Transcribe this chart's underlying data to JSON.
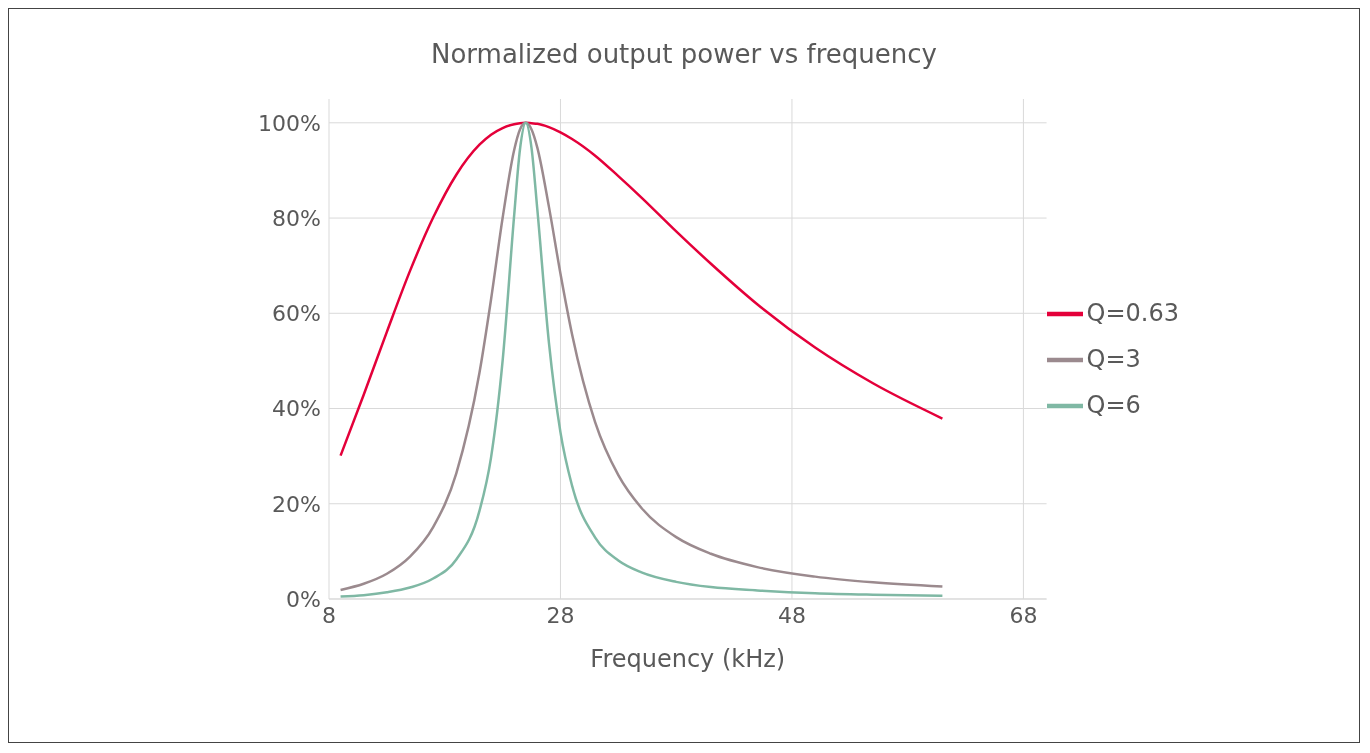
{
  "chart_data": {
    "type": "line",
    "title": "Normalized output power vs frequency",
    "xlabel": "Frequency (kHz)",
    "x": [
      9,
      11,
      13,
      15,
      17,
      19,
      21,
      22,
      23,
      24,
      24.5,
      25,
      25.5,
      26,
      27,
      28,
      29,
      31,
      33,
      35,
      38,
      41,
      45,
      50,
      55,
      61
    ],
    "series": [
      {
        "name": "Q=0.63",
        "color": "#e4003a",
        "values": [
          30.1,
          42.9,
          56.1,
          68.9,
          80.1,
          89.1,
          95.4,
          97.5,
          98.9,
          99.7,
          99.9,
          100,
          99.9,
          99.8,
          99.1,
          98.0,
          96.6,
          93.1,
          88.8,
          84.3,
          77.2,
          70.4,
          61.9,
          52.8,
          45.3,
          37.9
        ]
      },
      {
        "name": "Q=3",
        "color": "#9b8a8e",
        "values": [
          1.9,
          3.2,
          5.3,
          8.9,
          15.1,
          26.4,
          47.5,
          62.9,
          80.0,
          94.3,
          98.6,
          100,
          98.6,
          94.8,
          82.4,
          68.3,
          55.6,
          37.1,
          26.0,
          19.1,
          13.0,
          9.5,
          6.7,
          4.7,
          3.5,
          2.6
        ]
      },
      {
        "name": "Q=6",
        "color": "#7fb8a4",
        "values": [
          0.5,
          0.8,
          1.4,
          2.4,
          4.3,
          8.3,
          18.5,
          29.7,
          50.0,
          80.6,
          94.4,
          100,
          94.7,
          81.8,
          53.9,
          35.0,
          23.8,
          12.9,
          8.1,
          5.6,
          3.6,
          2.5,
          1.8,
          1.2,
          0.9,
          0.7
        ]
      }
    ],
    "xlim": [
      8,
      70
    ],
    "xticks": [
      8,
      28,
      48,
      68
    ],
    "ylim": [
      0,
      105
    ],
    "yticks": [
      {
        "value": 0,
        "label": "0%"
      },
      {
        "value": 20,
        "label": "20%"
      },
      {
        "value": 40,
        "label": "40%"
      },
      {
        "value": 60,
        "label": "60%"
      },
      {
        "value": 80,
        "label": "80%"
      },
      {
        "value": 100,
        "label": "100%"
      }
    ],
    "grid": true,
    "legend": "right",
    "line_style": "solid"
  }
}
